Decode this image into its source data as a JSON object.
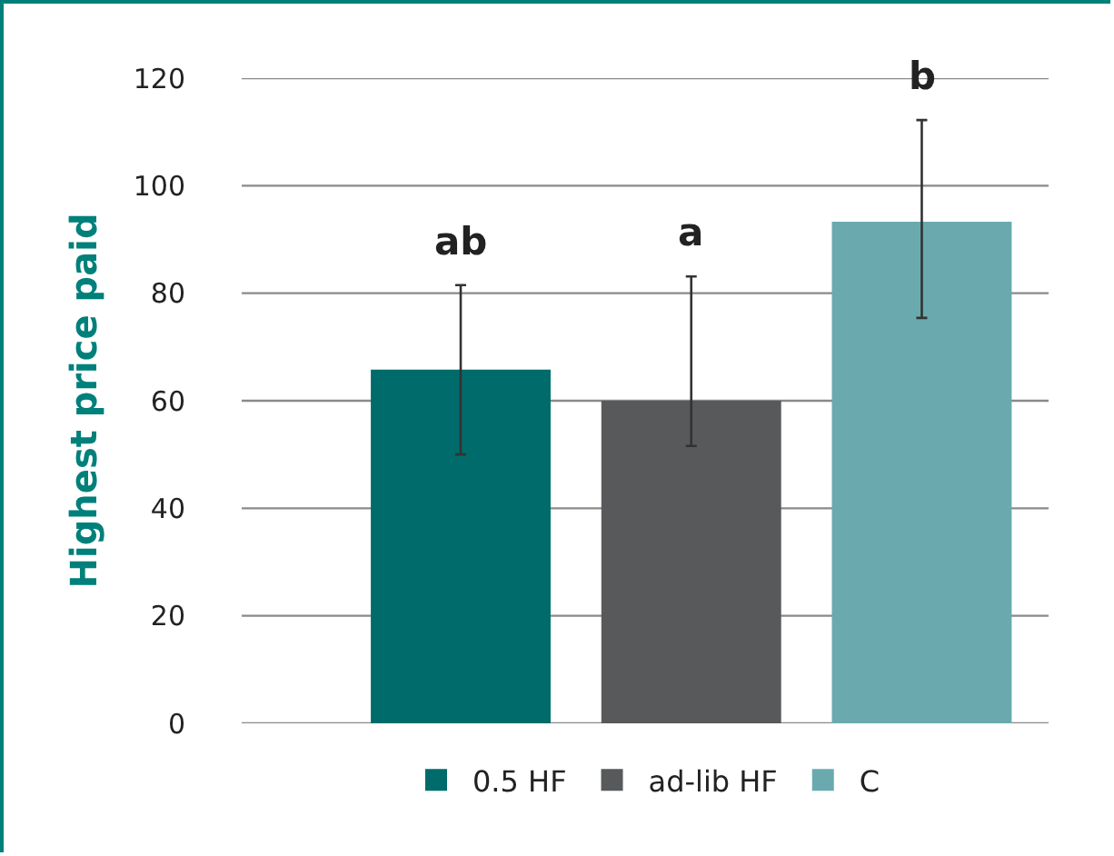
{
  "chart_data": {
    "type": "bar",
    "ylabel": "Highest price paid",
    "categories": [
      null,
      null,
      null
    ],
    "series": [
      {
        "name": "0.5 HF",
        "color": "#006b6b",
        "values": [
          65.8,
          null,
          null
        ],
        "errors": [
          [
            50,
            81.5
          ],
          null,
          null
        ]
      },
      {
        "name": "ad-lib HF",
        "color": "#58595b",
        "values": [
          null,
          60,
          null
        ],
        "errors": [
          null,
          [
            51.6,
            83.1
          ],
          null
        ]
      },
      {
        "name": "C",
        "color": "#6aaaae",
        "values": [
          null,
          null,
          93.3
        ],
        "errors": [
          null,
          null,
          [
            75.4,
            112.2
          ]
        ]
      }
    ],
    "annotations": [
      "ab",
      "a",
      "b"
    ],
    "ylim": [
      0,
      120
    ],
    "yticks": [
      0,
      20,
      40,
      60,
      80,
      100,
      120
    ],
    "grid": "y",
    "legend": "bottom",
    "tick_labels": "y"
  }
}
